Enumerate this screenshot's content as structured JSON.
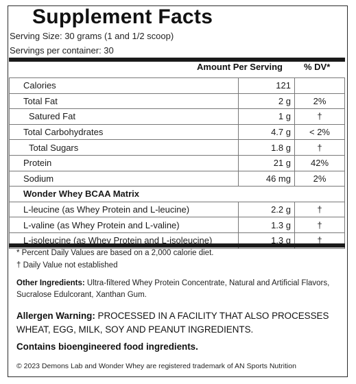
{
  "label": {
    "title": "Supplement Facts",
    "serving_size": "Serving Size: 30 grams (1 and 1/2 scoop)",
    "servings_per_container": "Servings per container: 30",
    "header_amount": "Amount Per Serving",
    "header_dv": "% DV*"
  },
  "nutrients": [
    {
      "name": "Calories",
      "amount": "121",
      "dv": ""
    },
    {
      "name": "Total Fat",
      "amount": "2 g",
      "dv": "2%"
    },
    {
      "name": "Satured Fat",
      "amount": "1 g",
      "dv": "†"
    },
    {
      "name": "Total Carbohydrates",
      "amount": "4.7 g",
      "dv": "< 2%"
    },
    {
      "name": "Total Sugars",
      "amount": "1.8 g",
      "dv": "†"
    },
    {
      "name": "Protein",
      "amount": "21 g",
      "dv": "42%"
    },
    {
      "name": "Sodium",
      "amount": "46 mg",
      "dv": "2%"
    }
  ],
  "matrix": {
    "title": "Wonder Whey BCAA Matrix",
    "items": [
      {
        "name": "L-leucine (as Whey Protein and L-leucine)",
        "amount": "2.2 g",
        "dv": "†"
      },
      {
        "name": "L-valine (as Whey Protein and L-valine)",
        "amount": "1.3 g",
        "dv": "†"
      },
      {
        "name": "L-isoleucine (as Whey Protein and L-isoleucine)",
        "amount": "1.3 g",
        "dv": "†"
      }
    ]
  },
  "footnotes": {
    "percent_dv": "* Percent Daily Values are based on a 2,000 calorie diet.",
    "not_established": "† Daily Value not established"
  },
  "ingredients": {
    "label": "Other Ingredients:",
    "text": " Ultra-filtered Whey Protein Concentrate, Natural and Artificial Flavors, Sucralose Edulcorant, Xanthan Gum."
  },
  "allergen": {
    "label": "Allergen Warning:",
    "text": " PROCESSED IN A FACILITY THAT ALSO PROCESSES WHEAT, EGG, MILK, SOY AND PEANUT INGREDIENTS."
  },
  "bioengineered": "Contains bioengineered food ingredients.",
  "copyright": "© 2023 Demons Lab and Wonder Whey are registered trademark of AN Sports Nutrition"
}
